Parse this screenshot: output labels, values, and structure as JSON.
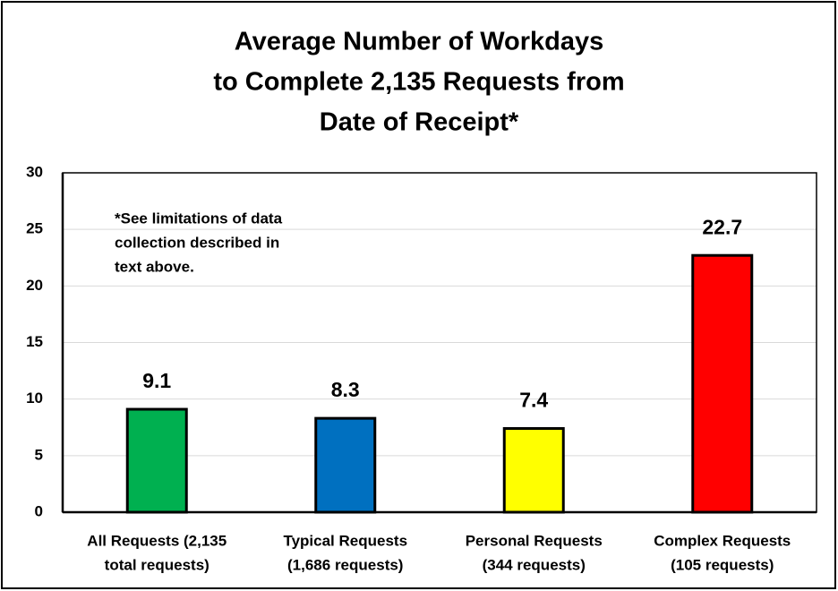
{
  "chart_data": {
    "type": "bar",
    "title": [
      "Average Number of Workdays",
      "to Complete 2,135 Requests from",
      "Date of Receipt*"
    ],
    "annotation": [
      "*See limitations of data",
      "collection described in",
      "text above."
    ],
    "categories": [
      [
        "All Requests (2,135",
        "total requests)"
      ],
      [
        "Typical Requests",
        "(1,686 requests)"
      ],
      [
        "Personal Requests",
        "(344 requests)"
      ],
      [
        "Complex Requests",
        "(105 requests)"
      ]
    ],
    "values": [
      9.1,
      8.3,
      7.4,
      22.7
    ],
    "colors": [
      "#00b050",
      "#0070c0",
      "#ffff00",
      "#ff0000"
    ],
    "ylim": [
      0,
      30
    ],
    "yticks": [
      0,
      5,
      10,
      15,
      20,
      25,
      30
    ],
    "grid": true
  }
}
